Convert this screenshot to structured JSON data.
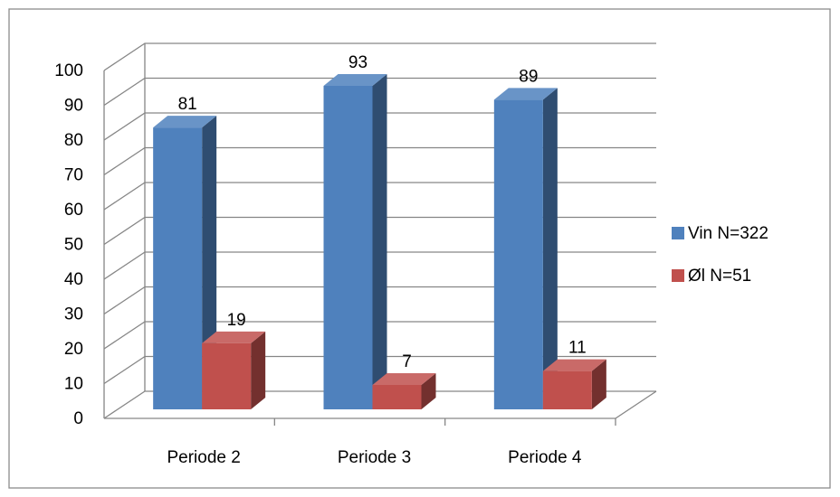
{
  "chart_data": {
    "type": "bar3d",
    "categories": [
      "Periode 2",
      "Periode 3",
      "Periode 4"
    ],
    "series": [
      {
        "name": "Vin N=322",
        "color": "#4f81bd",
        "values": [
          81,
          93,
          89
        ]
      },
      {
        "name": "Øl N=51",
        "color": "#c0504d",
        "values": [
          19,
          7,
          11
        ]
      }
    ],
    "ylim": [
      0,
      100
    ],
    "yticks": [
      0,
      10,
      20,
      30,
      40,
      50,
      60,
      70,
      80,
      90,
      100
    ],
    "grid": true,
    "legend": "right"
  }
}
